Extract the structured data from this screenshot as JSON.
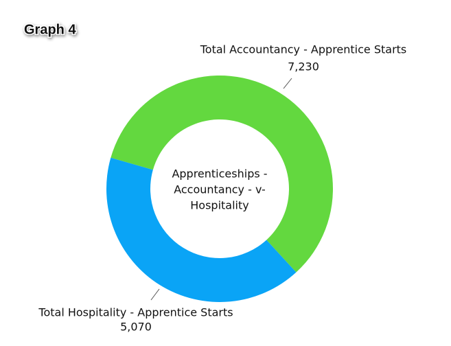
{
  "chart_data": {
    "type": "donut",
    "title": "Graph 4",
    "center_text": [
      "Apprenticeships -",
      "Accountancy - v-",
      "Hospitality"
    ],
    "categories": [
      "Total Accountancy - Apprentice Starts",
      "Total Hospitality - Apprentice Starts"
    ],
    "values": [
      7230,
      5070
    ],
    "value_labels": [
      "7,230",
      "5,070"
    ],
    "colors": [
      "#63d83f",
      "#0aa4f6"
    ]
  }
}
